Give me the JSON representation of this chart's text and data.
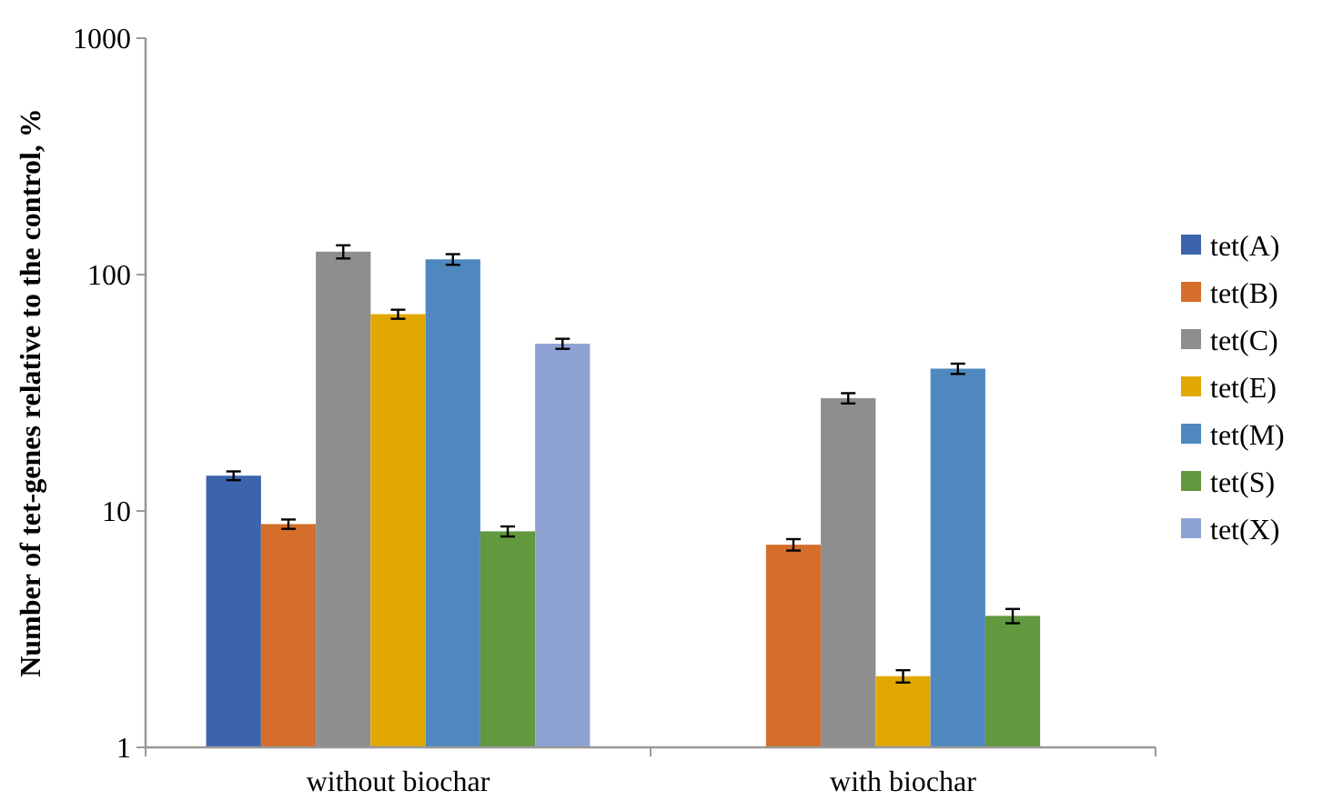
{
  "chart_data": {
    "type": "bar",
    "ylabel": "Number of tet-genes relative to the control, %",
    "categories": [
      "without biochar",
      "with biochar"
    ],
    "log": "y",
    "ylim": [
      1,
      1000
    ],
    "yticks": [
      1,
      10,
      100,
      1000
    ],
    "grid": false,
    "legend": "right",
    "series": [
      {
        "name": "tet(A)",
        "color": "#3c64ac",
        "values": [
          14.1,
          null
        ],
        "errors": [
          0.6,
          null
        ]
      },
      {
        "name": "tet(B)",
        "color": "#d46e2a",
        "values": [
          8.8,
          7.2
        ],
        "errors": [
          0.4,
          0.4
        ]
      },
      {
        "name": "tet(C)",
        "color": "#8e8e8e",
        "values": [
          125,
          30
        ],
        "errors": [
          8,
          1.5
        ]
      },
      {
        "name": "tet(E)",
        "color": "#e0a800",
        "values": [
          68,
          2.0
        ],
        "errors": [
          3,
          0.12
        ]
      },
      {
        "name": "tet(M)",
        "color": "#4f88be",
        "values": [
          116,
          40
        ],
        "errors": [
          6,
          2
        ]
      },
      {
        "name": "tet(S)",
        "color": "#62983e",
        "values": [
          8.2,
          3.6
        ],
        "errors": [
          0.4,
          0.25
        ]
      },
      {
        "name": "tet(X)",
        "color": "#8fa2d4",
        "values": [
          51,
          null
        ],
        "errors": [
          2.5,
          null
        ]
      }
    ]
  }
}
